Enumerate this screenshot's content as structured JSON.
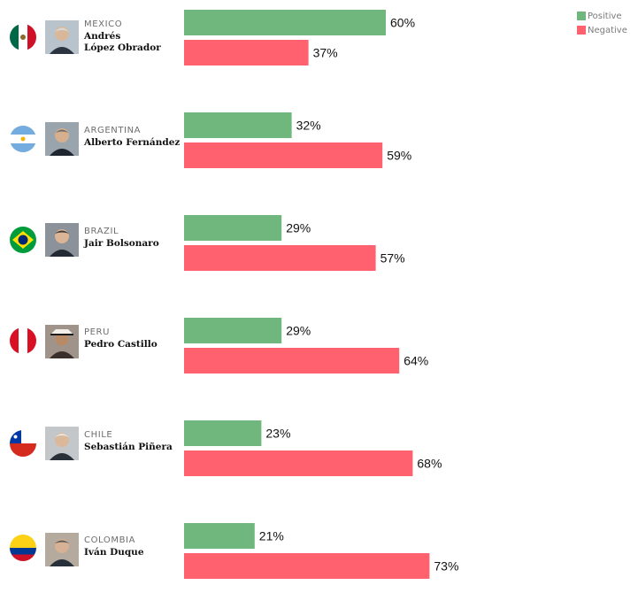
{
  "legend": {
    "positive": "Positive",
    "negative": "Negative"
  },
  "colors": {
    "positive": "#6fb77c",
    "negative": "#ff626e"
  },
  "rows": [
    {
      "country": "MEXICO",
      "leader_line1": "Andrés",
      "leader_line2": "López Obrador",
      "flag": "mexico-flag-icon"
    },
    {
      "country": "ARGENTINA",
      "leader_line1": "Alberto Fernández",
      "leader_line2": "",
      "flag": "argentina-flag-icon"
    },
    {
      "country": "BRAZIL",
      "leader_line1": "Jair Bolsonaro",
      "leader_line2": "",
      "flag": "brazil-flag-icon"
    },
    {
      "country": "PERU",
      "leader_line1": "Pedro Castillo",
      "leader_line2": "",
      "flag": "peru-flag-icon"
    },
    {
      "country": "CHILE",
      "leader_line1": "Sebastián Piñera",
      "leader_line2": "",
      "flag": "chile-flag-icon"
    },
    {
      "country": "COLOMBIA",
      "leader_line1": "Iván Duque",
      "leader_line2": "",
      "flag": "colombia-flag-icon"
    }
  ],
  "chart_data": {
    "type": "bar",
    "orientation": "horizontal",
    "categories": [
      "Andrés López Obrador",
      "Alberto Fernández",
      "Jair Bolsonaro",
      "Pedro Castillo",
      "Sebastián Piñera",
      "Iván Duque"
    ],
    "series": [
      {
        "name": "Positive",
        "values": [
          60,
          32,
          29,
          29,
          23,
          21
        ]
      },
      {
        "name": "Negative",
        "values": [
          37,
          59,
          57,
          64,
          68,
          73
        ]
      }
    ],
    "value_suffix": "%",
    "xlim": [
      0,
      100
    ],
    "grid": false,
    "legend_position": "top-right"
  }
}
